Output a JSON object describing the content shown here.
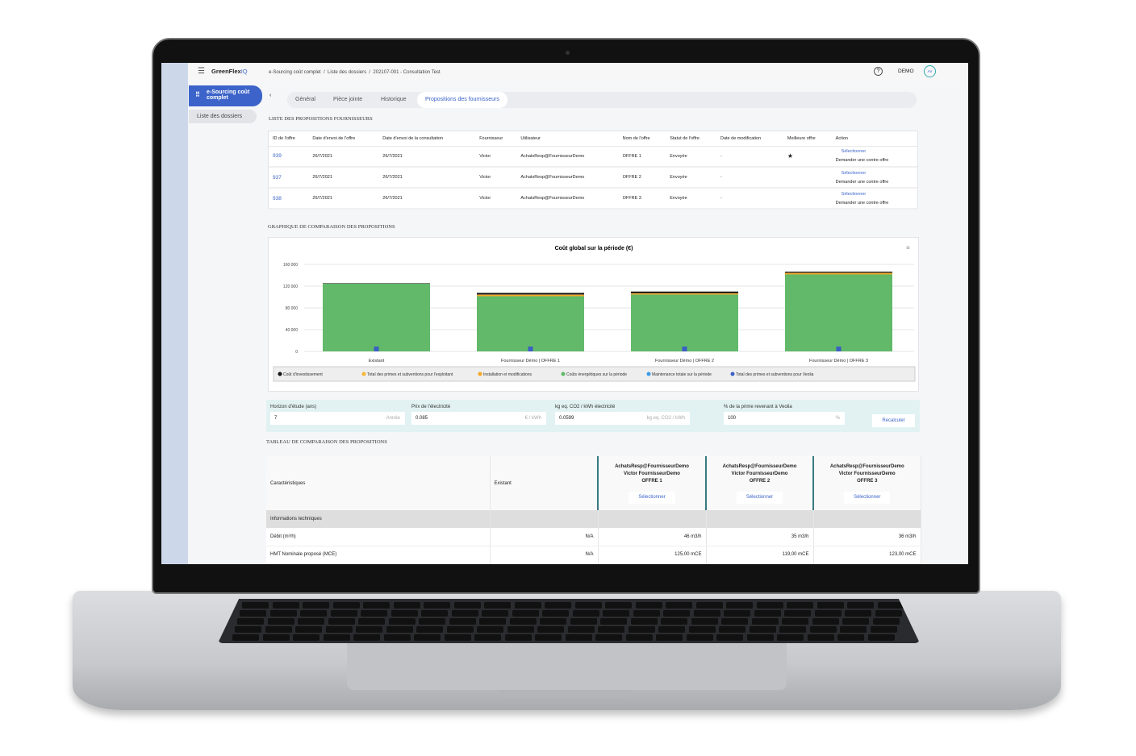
{
  "app": {
    "logo": "GreenFlex",
    "logo_suffix": "IQ",
    "breadcrumb": [
      "e-Sourcing coût complet",
      "Liste des dossiers",
      "202107-001 - Consultation Test"
    ],
    "user_label": "DEMO",
    "avatar": "AV"
  },
  "sidebar": {
    "items": [
      {
        "label": "e-Sourcing coût complet",
        "active": true
      },
      {
        "label": "Liste des dossiers"
      }
    ]
  },
  "tabs": [
    {
      "label": "Général"
    },
    {
      "label": "Pièce jointe"
    },
    {
      "label": "Historique"
    },
    {
      "label": "Propositions des fournisseurs",
      "active": true
    }
  ],
  "offers": {
    "title": "LISTE DES PROPOSITIONS FOURNISSEURS",
    "columns": [
      "ID de l'offre",
      "Date d'envoi de l'offre",
      "Date d'envoi de la consultation",
      "Fournisseur",
      "Utilisateur",
      "Nom de l'offre",
      "Statut de l'offre",
      "Date de modification",
      "Meilleure offre",
      "Action"
    ],
    "rows": [
      {
        "id": "939",
        "sent": "26/7/2021",
        "consult": "26/7/2021",
        "supplier": "Victor",
        "user": "AchatsResp@FournisseurDemo",
        "name": "OFFRE 1",
        "status": "Envoyée",
        "modified": "-",
        "best": "★",
        "select": "Sélectionner",
        "counter": "Demander une contre offre"
      },
      {
        "id": "937",
        "sent": "26/7/2021",
        "consult": "26/7/2021",
        "supplier": "Victor",
        "user": "AchatsResp@FournisseurDemo",
        "name": "OFFRE 2",
        "status": "Envoyée",
        "modified": "-",
        "best": "",
        "select": "Sélectionner",
        "counter": "Demander une contre offre"
      },
      {
        "id": "938",
        "sent": "26/7/2021",
        "consult": "26/7/2021",
        "supplier": "Victor",
        "user": "AchatsResp@FournisseurDemo",
        "name": "OFFRE 3",
        "status": "Envoyée",
        "modified": "-",
        "best": "",
        "select": "Sélectionner",
        "counter": "Demander une contre offre"
      }
    ]
  },
  "chart_section_title": "GRAPHIQUE DE COMPARAISON DES PROPOSITIONS",
  "chart_data": {
    "type": "bar",
    "stacked": true,
    "title": "Coût global sur la période (€)",
    "ylim": [
      0,
      160000
    ],
    "yticks": [
      "0",
      "40 000",
      "80 000",
      "120 000",
      "160 000"
    ],
    "grid": true,
    "legend_position": "bottom",
    "categories": [
      "Existant",
      "Fournisseur Démo | OFFRE 1",
      "Fournisseur Démo | OFFRE 2",
      "Fournisseur Démo | OFFRE 3"
    ],
    "series": [
      {
        "name": "Coûts énergétiques sur la période",
        "color": "#62b96a",
        "values": [
          124500,
          101500,
          104500,
          141500
        ]
      },
      {
        "name": "Installation et modifications",
        "color": "#f5a623",
        "values": [
          0,
          2500,
          2000,
          2500
        ]
      },
      {
        "name": "Total des primes et subventions pour l'exploitant",
        "color": "#f7b733",
        "values": [
          0,
          500,
          500,
          500
        ]
      },
      {
        "name": "Maintenance totale sur la période",
        "color": "#3a9be8",
        "values": [
          0,
          0,
          0,
          0
        ]
      },
      {
        "name": "Total des primes et subventions pour Veolia",
        "color": "#3b5fc4",
        "values": [
          0,
          0,
          0,
          0
        ]
      },
      {
        "name": "Coût d'investissement",
        "color": "#111111",
        "values": [
          800,
          3000,
          3000,
          2000
        ]
      }
    ],
    "legend_order": [
      "Coût d'investissement",
      "Total des primes et subventions pour l'exploitant",
      "Installation et modifications",
      "Coûts énergétiques sur la période",
      "Maintenance totale sur la période",
      "Total des primes et subventions pour Veolia"
    ]
  },
  "params": [
    {
      "label": "Horizon d'étude (ans)",
      "value": "7",
      "unit": "Année"
    },
    {
      "label": "Prix de l'électricité",
      "value": "0.085",
      "unit": "€ / kWh"
    },
    {
      "label": "kg eq. CO2 / kWh électricité",
      "value": "0.0599",
      "unit": "kg eq. CO2 / kWh"
    },
    {
      "label": "% de la prime revenant à Veolia",
      "value": "100",
      "unit": "%"
    }
  ],
  "recalc": "Recalculer",
  "comparison": {
    "title": "TABLEAU DE COMPARAISON DES PROPOSITIONS",
    "col_char": "Caractéristiques",
    "col_existing": "Existant",
    "offers": [
      {
        "l1": "AchatsResp@FournisseurDemo",
        "l2": "Victor FournisseurDemo",
        "l3": "OFFRE 1",
        "btn": "Sélectionner"
      },
      {
        "l1": "AchatsResp@FournisseurDemo",
        "l2": "Victor FournisseurDemo",
        "l3": "OFFRE 2",
        "btn": "Sélectionner"
      },
      {
        "l1": "AchatsResp@FournisseurDemo",
        "l2": "Victor FournisseurDemo",
        "l3": "OFFRE 3",
        "btn": "Sélectionner"
      }
    ],
    "group": "Informations techniques",
    "rows": [
      {
        "label": "Débit (m³/h)",
        "existing": "N/A",
        "o1": "46 m3/h",
        "o2": "35 m3/h",
        "o3": "36 m3/h"
      },
      {
        "label": "HMT Nominale proposé (MCE)",
        "existing": "N/A",
        "o1": "125,00 mCE",
        "o2": "119,00 mCE",
        "o3": "123,00 mCE"
      }
    ]
  }
}
